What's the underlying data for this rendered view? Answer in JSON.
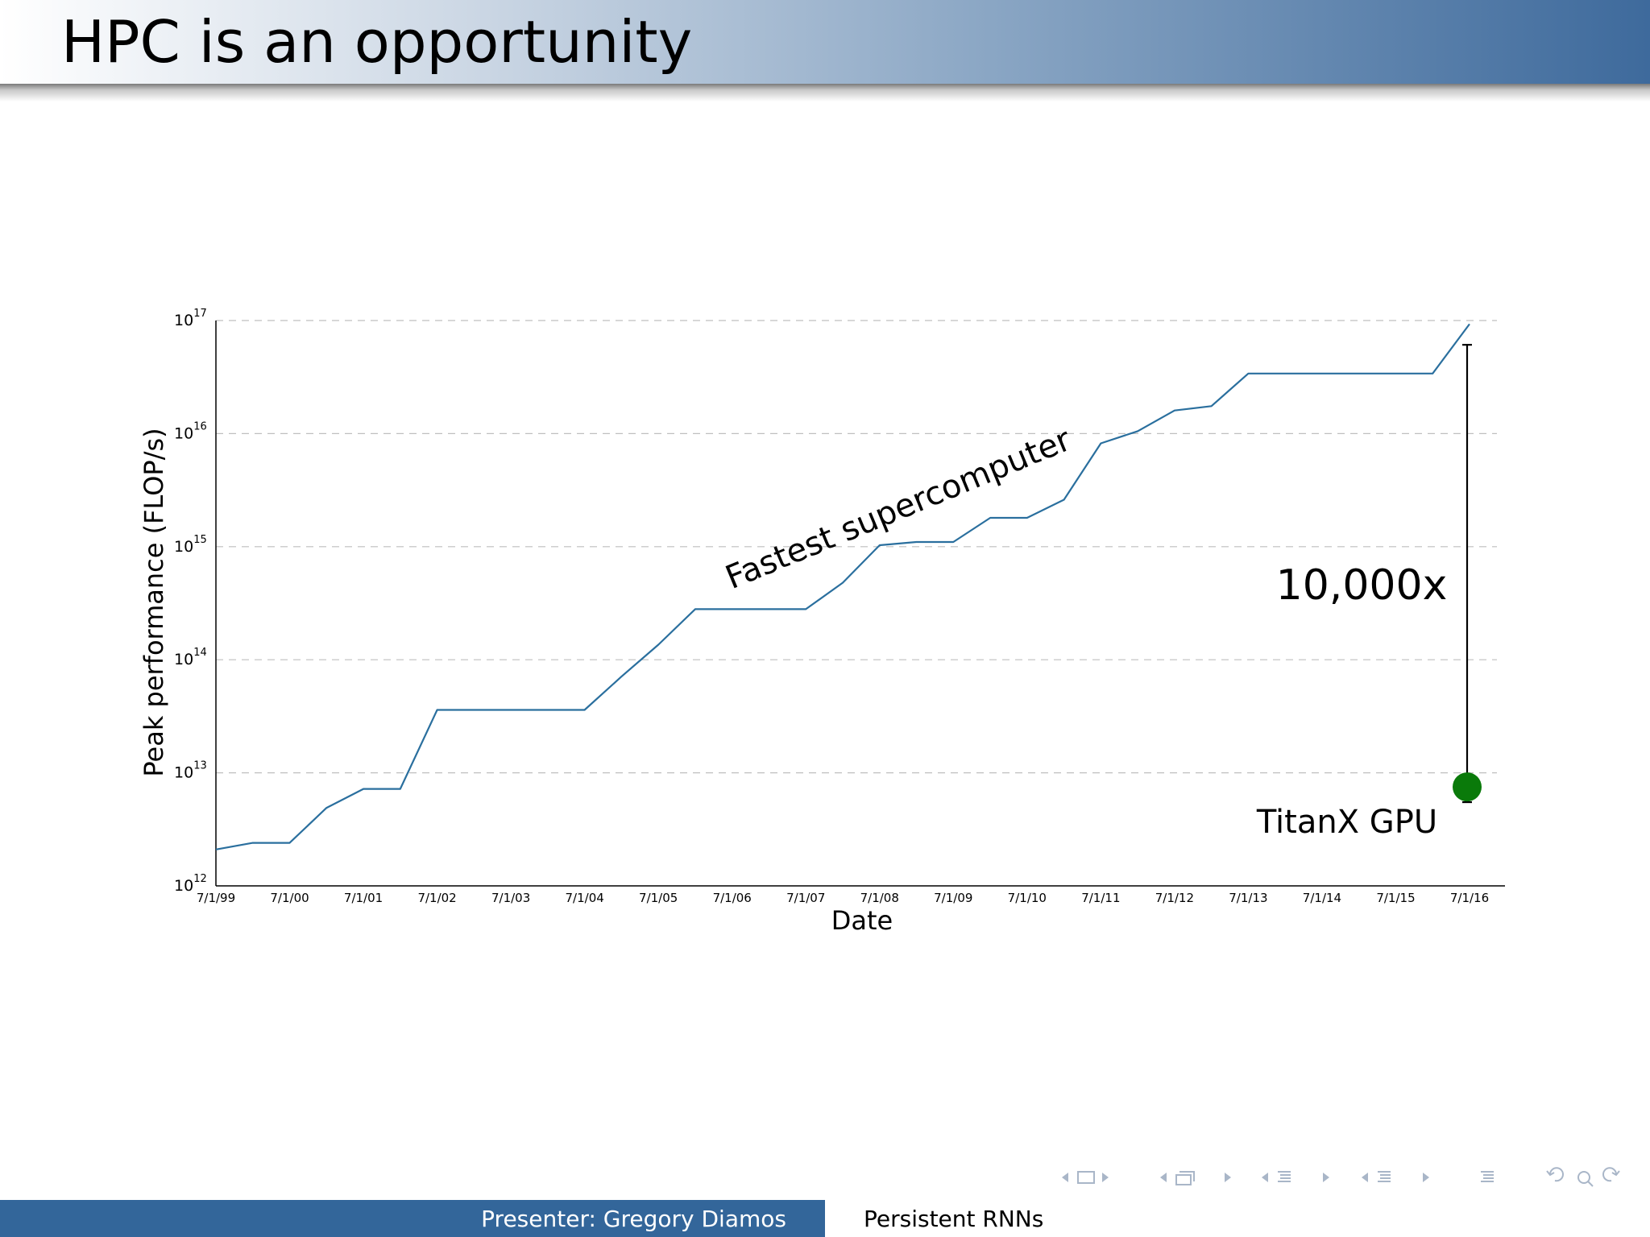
{
  "slide": {
    "title": "HPC is an opportunity"
  },
  "footer": {
    "presenter": "Presenter: Gregory Diamos",
    "talk_title": "Persistent RNNs"
  },
  "nav_icons": [
    "frame-prev-icon",
    "frame-icon",
    "frame-next-icon",
    "subsection-prev-icon",
    "subsection-icon",
    "subsection-next-icon",
    "section-prev-icon",
    "section-icon",
    "section-next-icon",
    "page-prev-icon",
    "page-icon",
    "page-next-icon",
    "toc-icon",
    "back-icon",
    "search-icon",
    "forward-icon"
  ],
  "colors": {
    "line": "#2a6f9e",
    "gpu_marker": "#0a7a0a",
    "footer_bg": "#33669a",
    "grid": "#bfbfbf"
  },
  "chart_data": {
    "type": "line",
    "xlabel": "Date",
    "ylabel": "Peak performance (FLOP/s)",
    "y_scale": "log",
    "ylim": [
      "1e12",
      "1e17"
    ],
    "xlim": [
      "7/1/99",
      "7/1/16"
    ],
    "x_ticks": [
      "7/1/99",
      "7/1/00",
      "7/1/01",
      "7/1/02",
      "7/1/03",
      "7/1/04",
      "7/1/05",
      "7/1/06",
      "7/1/07",
      "7/1/08",
      "7/1/09",
      "7/1/10",
      "7/1/11",
      "7/1/12",
      "7/1/13",
      "7/1/14",
      "7/1/15",
      "7/1/16"
    ],
    "y_ticks": [
      {
        "base": "10",
        "exp": "12",
        "value": 1000000000000.0
      },
      {
        "base": "10",
        "exp": "13",
        "value": 10000000000000.0
      },
      {
        "base": "10",
        "exp": "14",
        "value": 100000000000000.0
      },
      {
        "base": "10",
        "exp": "15",
        "value": 1000000000000000.0
      },
      {
        "base": "10",
        "exp": "16",
        "value": 1e+16
      },
      {
        "base": "10",
        "exp": "17",
        "value": 1e+17
      }
    ],
    "grid": "horizontal dashed",
    "series": [
      {
        "name": "Fastest supercomputer",
        "points": [
          [
            "7/1/99",
            2100000000000.0
          ],
          [
            "1/1/00",
            2400000000000.0
          ],
          [
            "7/1/00",
            2400000000000.0
          ],
          [
            "1/1/01",
            4900000000000.0
          ],
          [
            "7/1/01",
            7200000000000.0
          ],
          [
            "1/1/02",
            7200000000000.0
          ],
          [
            "7/1/02",
            36000000000000.0
          ],
          [
            "7/1/04",
            36000000000000.0
          ],
          [
            "1/1/05",
            71000000000000.0
          ],
          [
            "7/1/05",
            136000000000000.0
          ],
          [
            "1/1/06",
            280000000000000.0
          ],
          [
            "7/1/07",
            280000000000000.0
          ],
          [
            "1/1/08",
            480000000000000.0
          ],
          [
            "7/1/08",
            1030000000000000.0
          ],
          [
            "1/1/09",
            1100000000000000.0
          ],
          [
            "7/1/09",
            1100000000000000.0
          ],
          [
            "1/1/10",
            1800000000000000.0
          ],
          [
            "7/1/10",
            1800000000000000.0
          ],
          [
            "1/1/11",
            2600000000000000.0
          ],
          [
            "7/1/11",
            8200000000000000.0
          ],
          [
            "1/1/12",
            1.05e+16
          ],
          [
            "7/1/12",
            1.6e+16
          ],
          [
            "1/1/13",
            1.75e+16
          ],
          [
            "7/1/13",
            3.4e+16
          ],
          [
            "1/1/16",
            3.4e+16
          ],
          [
            "7/1/16",
            9.3e+16
          ]
        ]
      }
    ],
    "annotations": {
      "series_label": "Fastest supercomputer",
      "gap_label": "10,000x",
      "gpu_label": "TitanX GPU",
      "gpu_point": [
        "7/1/16",
        7500000000000.0
      ],
      "gap_range": [
        "5.5e12",
        "6.1e16"
      ]
    }
  }
}
